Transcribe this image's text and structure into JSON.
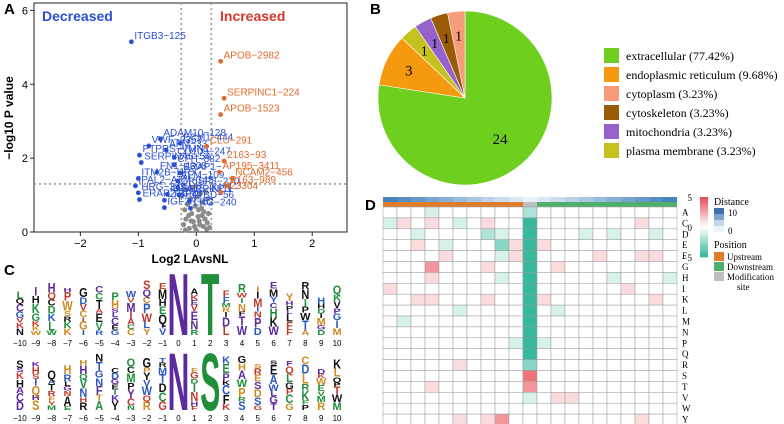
{
  "chart_data": [
    {
      "panel": "A",
      "type": "scatter",
      "xlabel": "Log2 LAvsNL",
      "ylabel": "−log10 P value",
      "xlim": [
        -2.8,
        2.6
      ],
      "ylim": [
        0,
        6.2
      ],
      "xticks": [
        "−2",
        "−1",
        "0",
        "1",
        "2"
      ],
      "xtick_values": [
        -2,
        -1,
        0,
        1,
        2
      ],
      "yticks": [
        "0",
        "2",
        "4",
        "6"
      ],
      "ytick_values": [
        0,
        2,
        4,
        6
      ],
      "thresholds": {
        "x": [
          -0.26,
          0.26
        ],
        "y": 1.3
      },
      "group_titles": {
        "decreased": "Decreased",
        "increased": "Increased"
      },
      "colors": {
        "decreased": "#2a4fd4",
        "increased": "#e06a2a",
        "ns": "#8c8c8c"
      },
      "points_decreased": [
        {
          "x": -1.12,
          "y": 5.15,
          "label": "ITGB3−125"
        },
        {
          "x": -0.62,
          "y": 2.52,
          "label": "ADAM10−128"
        },
        {
          "x": -0.82,
          "y": 2.33,
          "label": "VWF−2357"
        },
        {
          "x": -0.28,
          "y": 2.4,
          "label": "ECM1−444"
        },
        {
          "x": -0.52,
          "y": 2.22,
          "label": "AFM−33"
        },
        {
          "x": -0.98,
          "y": 2.08,
          "label": "PTPRS−VMN1"
        },
        {
          "x": -0.38,
          "y": 2.02,
          "label": "CD109−247"
        },
        {
          "x": -0.95,
          "y": 1.88,
          "label": "SERPINA6−54"
        },
        {
          "x": -0.38,
          "y": 1.82,
          "label": "CFH−882"
        },
        {
          "x": -0.68,
          "y": 1.62,
          "label": "FN1−4308"
        },
        {
          "x": -0.28,
          "y": 1.6,
          "label": "ERAP1−"
        },
        {
          "x": -1.0,
          "y": 1.45,
          "label": "ITM2B−HRX"
        },
        {
          "x": -0.32,
          "y": 1.38,
          "label": "AFM−109"
        },
        {
          "x": -1.05,
          "y": 1.25,
          "label": "IPAL2−ATM−145"
        },
        {
          "x": -0.32,
          "y": 1.2,
          "label": "CRISP3−270"
        },
        {
          "x": -1.0,
          "y": 1.06,
          "label": "HRG−345"
        },
        {
          "x": -0.5,
          "y": 1.02,
          "label": "IGFALS−KPN"
        },
        {
          "x": -0.3,
          "y": 1.0,
          "label": "SERPINC1−"
        },
        {
          "x": -0.98,
          "y": 0.88,
          "label": "ERAP2−GRB"
        },
        {
          "x": -0.55,
          "y": 0.86,
          "label": "LTBP4"
        },
        {
          "x": -0.12,
          "y": 0.84,
          "label": "LTBD−56"
        },
        {
          "x": -0.55,
          "y": 0.66,
          "label": "IGF2R−52"
        },
        {
          "x": -0.1,
          "y": 0.64,
          "label": "LRG−240"
        }
      ],
      "points_increased": [
        {
          "x": 0.42,
          "y": 4.62,
          "label": "APOB−2982"
        },
        {
          "x": 0.48,
          "y": 3.62,
          "label": "SERPINC1−224"
        },
        {
          "x": 0.42,
          "y": 3.18,
          "label": "APOB−1523"
        },
        {
          "x": 0.18,
          "y": 2.32,
          "label": "CLU−291"
        },
        {
          "x": 0.48,
          "y": 1.92,
          "label": "2163−93"
        },
        {
          "x": 0.4,
          "y": 1.62,
          "label": "AP195−3411"
        },
        {
          "x": 0.62,
          "y": 1.45,
          "label": "NCAM2−456"
        },
        {
          "x": 0.55,
          "y": 1.25,
          "label": "2163−989"
        },
        {
          "x": 0.42,
          "y": 1.08,
          "label": "P23304"
        }
      ],
      "points_ns": [
        [
          -0.22,
          0.2
        ],
        [
          -0.18,
          0.35
        ],
        [
          -0.12,
          0.1
        ],
        [
          -0.08,
          0.5
        ],
        [
          -0.05,
          0.28
        ],
        [
          0.0,
          0.05
        ],
        [
          0.03,
          0.42
        ],
        [
          0.06,
          0.2
        ],
        [
          0.09,
          0.65
        ],
        [
          0.12,
          0.15
        ],
        [
          0.15,
          0.35
        ],
        [
          0.18,
          0.08
        ],
        [
          0.21,
          0.5
        ],
        [
          -0.2,
          0.6
        ],
        [
          -0.15,
          0.75
        ],
        [
          -0.1,
          0.9
        ],
        [
          -0.02,
          0.7
        ],
        [
          0.02,
          0.95
        ],
        [
          0.07,
          1.05
        ],
        [
          0.11,
          0.8
        ],
        [
          0.16,
          1.1
        ],
        [
          0.2,
          0.9
        ],
        [
          -0.24,
          1.0
        ],
        [
          -0.17,
          1.15
        ],
        [
          -0.06,
          1.2
        ],
        [
          0.0,
          1.25
        ],
        [
          0.05,
          0.3
        ],
        [
          0.1,
          0.45
        ],
        [
          -0.13,
          0.45
        ],
        [
          -0.03,
          0.15
        ],
        [
          0.13,
          0.55
        ],
        [
          0.19,
          0.25
        ],
        [
          -0.09,
          0.3
        ],
        [
          0.04,
          0.6
        ],
        [
          -0.19,
          0.05
        ],
        [
          0.23,
          0.12
        ]
      ]
    },
    {
      "panel": "B",
      "type": "pie",
      "categories": [
        "extracellular (77.42%)",
        "endoplasmic reticulum (9.68%)",
        "cytoplasm (3.23%)",
        "cytoskeleton (3.23%)",
        "mitochondria (3.23%)",
        "plasma membrane (3.23%)"
      ],
      "values": [
        24,
        3,
        1,
        1,
        1,
        1
      ],
      "slice_labels": [
        "24",
        "3",
        "1",
        "1",
        "1",
        "1"
      ],
      "colors": [
        "#6fcf1e",
        "#f5990f",
        "#f79c79",
        "#9a5b06",
        "#9562cc",
        "#c5c21f"
      ]
    },
    {
      "panel": "C",
      "type": "other",
      "description_labels": {
        "positions": [
          "−10",
          "−9",
          "−8",
          "−7",
          "−6",
          "−5",
          "−4",
          "−3",
          "−2",
          "−1",
          "0",
          "1",
          "2",
          "3",
          "4",
          "5",
          "6",
          "7",
          "8",
          "9",
          "10"
        ]
      },
      "logo_rows": [
        {
          "tall_letters": [
            {
              "pos": "0",
              "letter": "N",
              "color": "#5b2a9e"
            },
            {
              "pos": "2",
              "letter": "T",
              "color": "#1f8f3a"
            }
          ]
        },
        {
          "tall_letters": [
            {
              "pos": "0",
              "letter": "N",
              "color": "#5b2a9e"
            },
            {
              "pos": "2",
              "letter": "S",
              "color": "#1f8f3a"
            }
          ]
        }
      ]
    },
    {
      "panel": "D",
      "type": "heatmap",
      "rows": [
        "A",
        "C",
        "D",
        "E",
        "F",
        "G",
        "H",
        "I",
        "K",
        "L",
        "M",
        "N",
        "P",
        "Q",
        "R",
        "S",
        "T",
        "V",
        "W",
        "Y"
      ],
      "n_cols": 21,
      "center_col": 10,
      "values": [
        [
          0,
          0,
          0,
          -1,
          0,
          0,
          0,
          0,
          0,
          0,
          -2,
          0,
          0,
          0,
          0,
          0,
          0,
          0,
          0,
          0,
          0
        ],
        [
          -1,
          1,
          0,
          1,
          0,
          -1,
          0,
          1,
          0,
          0,
          -5,
          0,
          0,
          0,
          0,
          0,
          0,
          0,
          1,
          0,
          0
        ],
        [
          0,
          0,
          -1,
          0,
          0,
          0,
          0,
          -2,
          -1,
          0,
          -5,
          0,
          0,
          0,
          -1,
          0,
          -1,
          0,
          0,
          -1,
          0
        ],
        [
          0,
          0,
          1,
          0,
          -1,
          0,
          0,
          0,
          -3,
          1,
          -5,
          1,
          0,
          0,
          0,
          0,
          0,
          0,
          0,
          0,
          0
        ],
        [
          0,
          0,
          0,
          0,
          1,
          0,
          0,
          0,
          -1,
          1,
          -5,
          0,
          0,
          0,
          0,
          1,
          0,
          0,
          1,
          1,
          0
        ],
        [
          0,
          0,
          0,
          3,
          0,
          0,
          0,
          1,
          0,
          0,
          -5,
          0,
          1,
          0,
          0,
          0,
          0,
          0,
          0,
          0,
          0
        ],
        [
          0,
          0,
          0,
          1,
          0,
          0,
          0,
          0,
          -1,
          0,
          -5,
          0,
          0,
          0,
          0,
          0,
          -1,
          0,
          0,
          0,
          -1
        ],
        [
          1,
          0,
          0,
          0,
          0,
          0,
          0,
          0,
          0,
          0,
          -5,
          0,
          0,
          0,
          0,
          0,
          0,
          1,
          0,
          0,
          0
        ],
        [
          0,
          0,
          1,
          1,
          0,
          0,
          0,
          1,
          0,
          0,
          -5,
          1,
          0,
          0,
          0,
          0,
          0,
          0,
          0,
          1,
          0
        ],
        [
          0,
          0,
          0,
          0,
          0,
          -1,
          0,
          0,
          0,
          0,
          -5,
          0,
          -1,
          0,
          0,
          0,
          0,
          0,
          0,
          0,
          0
        ],
        [
          0,
          -1,
          0,
          0,
          0,
          0,
          0,
          0,
          0,
          0,
          -5,
          0,
          0,
          0,
          0,
          0,
          0,
          0,
          0,
          0,
          0
        ],
        [
          0,
          0,
          0,
          0,
          0,
          0,
          0,
          0,
          0,
          0,
          -5,
          0,
          0,
          0,
          0,
          0,
          0,
          0,
          0,
          0,
          0
        ],
        [
          0,
          0,
          0,
          0,
          0,
          0,
          0,
          0,
          0,
          -1,
          -5,
          -1,
          0,
          0,
          0,
          0,
          0,
          0,
          0,
          0,
          0
        ],
        [
          0,
          0,
          0,
          0,
          0,
          0,
          0,
          0,
          0,
          0,
          -5,
          0,
          0,
          0,
          0,
          0,
          0,
          0,
          0,
          0,
          0
        ],
        [
          0,
          0,
          0,
          0,
          0,
          1,
          0,
          0,
          0,
          0,
          -3,
          0,
          0,
          0,
          0,
          0,
          0,
          0,
          0,
          0,
          0
        ],
        [
          0,
          0,
          0,
          0,
          0,
          0,
          0,
          0,
          0,
          0,
          4,
          0,
          0,
          0,
          0,
          0,
          0,
          0,
          0,
          0,
          0
        ],
        [
          0,
          0,
          0,
          1,
          0,
          0,
          0,
          0,
          0,
          0,
          3,
          0,
          0,
          0,
          0,
          0,
          0,
          0,
          0,
          0,
          0
        ],
        [
          0,
          0,
          0,
          0,
          0,
          0,
          0,
          0,
          0,
          0,
          -1,
          0,
          1,
          1,
          0,
          0,
          0,
          0,
          0,
          0,
          0
        ],
        [
          0,
          0,
          0,
          0,
          0,
          0,
          0,
          0,
          0,
          0,
          0,
          0,
          0,
          0,
          0,
          0,
          0,
          0,
          0,
          0,
          0
        ],
        [
          0,
          0,
          0,
          0,
          0,
          1,
          0,
          1,
          3,
          0,
          0,
          0,
          0,
          0,
          0,
          0,
          0,
          0,
          1,
          0,
          0
        ]
      ],
      "legend": {
        "color_title": "",
        "color_ticks": [
          "5",
          "0",
          "−5"
        ],
        "color_tick_values": [
          5,
          0,
          -5
        ],
        "distance_title": "Distance",
        "distance_ticks": [
          "10",
          "0"
        ],
        "position_title": "Position",
        "position_items": [
          "Upstream",
          "Downstream",
          "Modification site"
        ],
        "position_colors": [
          "#e07d2c",
          "#4fb06b",
          "#bfbfbf"
        ]
      }
    }
  ],
  "panel_labels": {
    "a": "A",
    "b": "B",
    "c": "C",
    "d": "D"
  }
}
